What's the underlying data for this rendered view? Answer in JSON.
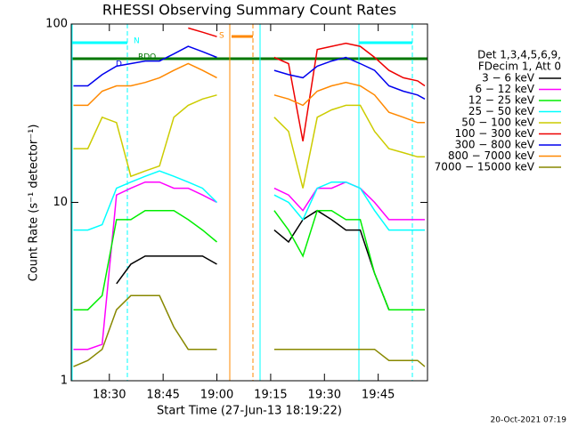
{
  "chart_data": {
    "type": "line",
    "title": "RHESSI Observing Summary Count Rates",
    "x_label": "Start Time (27-Jun-13 18:19:22)",
    "y_label": "Count Rate (s⁻¹ detector⁻¹)",
    "legend_header": [
      "Det 1,3,4,5,6,9,",
      "FDecim 1, Att 0"
    ],
    "footer": "20-Oct-2021 07:19",
    "flag_labels": [
      "D",
      "N",
      "RDO",
      "S"
    ],
    "log_y": true,
    "xlim": [
      19.37,
      118.75
    ],
    "xticks": [
      {
        "value": 30,
        "label": "18:30"
      },
      {
        "value": 45,
        "label": "18:45"
      },
      {
        "value": 60,
        "label": "19:00"
      },
      {
        "value": 75,
        "label": "19:15"
      },
      {
        "value": 90,
        "label": "19:30"
      },
      {
        "value": 105,
        "label": "19:45"
      }
    ],
    "ylim": [
      1,
      100
    ],
    "yticks": [
      1,
      10,
      100
    ],
    "x": [
      20,
      24,
      28,
      32,
      36,
      40,
      44,
      48,
      52,
      56,
      60,
      64,
      68,
      72,
      76,
      80,
      84,
      88,
      92,
      96,
      100,
      104,
      108,
      112,
      116,
      118
    ],
    "series": [
      {
        "name": "3 − 6 keV",
        "color": "#000000",
        "values": [
          null,
          null,
          null,
          3.5,
          4.5,
          5,
          5,
          5,
          5,
          5,
          4.5,
          null,
          null,
          null,
          7,
          6,
          8,
          9,
          8,
          7,
          7,
          4,
          2.5,
          null,
          null,
          null
        ]
      },
      {
        "name": "6 − 12 keV",
        "color": "#ff00ff",
        "values": [
          1.5,
          1.5,
          1.6,
          11,
          12,
          13,
          13,
          12,
          12,
          11,
          10,
          null,
          null,
          null,
          12,
          11,
          9,
          12,
          12,
          13,
          12,
          10,
          8,
          8,
          8,
          8
        ]
      },
      {
        "name": "12 − 25 keV",
        "color": "#00ee00",
        "values": [
          2.5,
          2.5,
          3,
          8,
          8,
          9,
          9,
          9,
          8,
          7,
          6,
          null,
          null,
          null,
          9,
          7,
          5,
          9,
          9,
          8,
          8,
          4,
          2.5,
          2.5,
          2.5,
          2.5
        ]
      },
      {
        "name": "25 − 50 keV",
        "color": "#00ffff",
        "values": [
          7,
          7,
          7.5,
          12,
          13,
          14,
          15,
          14,
          13,
          12,
          10,
          null,
          null,
          null,
          11,
          10,
          8,
          12,
          13,
          13,
          12,
          9,
          7,
          7,
          7,
          7
        ]
      },
      {
        "name": "50 − 100 keV",
        "color": "#cccc00",
        "values": [
          20,
          20,
          30,
          28,
          14,
          15,
          16,
          30,
          35,
          38,
          40,
          null,
          null,
          null,
          30,
          25,
          12,
          30,
          33,
          35,
          35,
          25,
          20,
          19,
          18,
          18
        ]
      },
      {
        "name": "100 − 300 keV",
        "color": "#ee0000",
        "values": [
          null,
          null,
          null,
          null,
          null,
          null,
          null,
          null,
          95,
          90,
          85,
          null,
          null,
          null,
          65,
          60,
          22,
          72,
          75,
          78,
          75,
          65,
          55,
          50,
          48,
          45
        ]
      },
      {
        "name": "300 − 800 keV",
        "color": "#0000ee",
        "values": [
          45,
          45,
          52,
          58,
          60,
          62,
          62,
          68,
          75,
          70,
          65,
          null,
          null,
          null,
          55,
          52,
          50,
          58,
          62,
          65,
          60,
          55,
          45,
          42,
          40,
          38
        ]
      },
      {
        "name": "800 − 7000 keV",
        "color": "#ff8800",
        "values": [
          35,
          35,
          42,
          45,
          45,
          47,
          50,
          55,
          60,
          55,
          50,
          null,
          null,
          null,
          40,
          38,
          35,
          42,
          45,
          47,
          45,
          40,
          32,
          30,
          28,
          28
        ]
      },
      {
        "name": "7000 − 15000 keV",
        "color": "#888800",
        "values": [
          1.2,
          1.3,
          1.5,
          2.5,
          3,
          3,
          3,
          2,
          1.5,
          1.5,
          1.5,
          null,
          null,
          null,
          1.5,
          1.5,
          1.5,
          1.5,
          1.5,
          1.5,
          1.5,
          1.5,
          1.3,
          1.3,
          1.3,
          1.2
        ]
      }
    ]
  }
}
